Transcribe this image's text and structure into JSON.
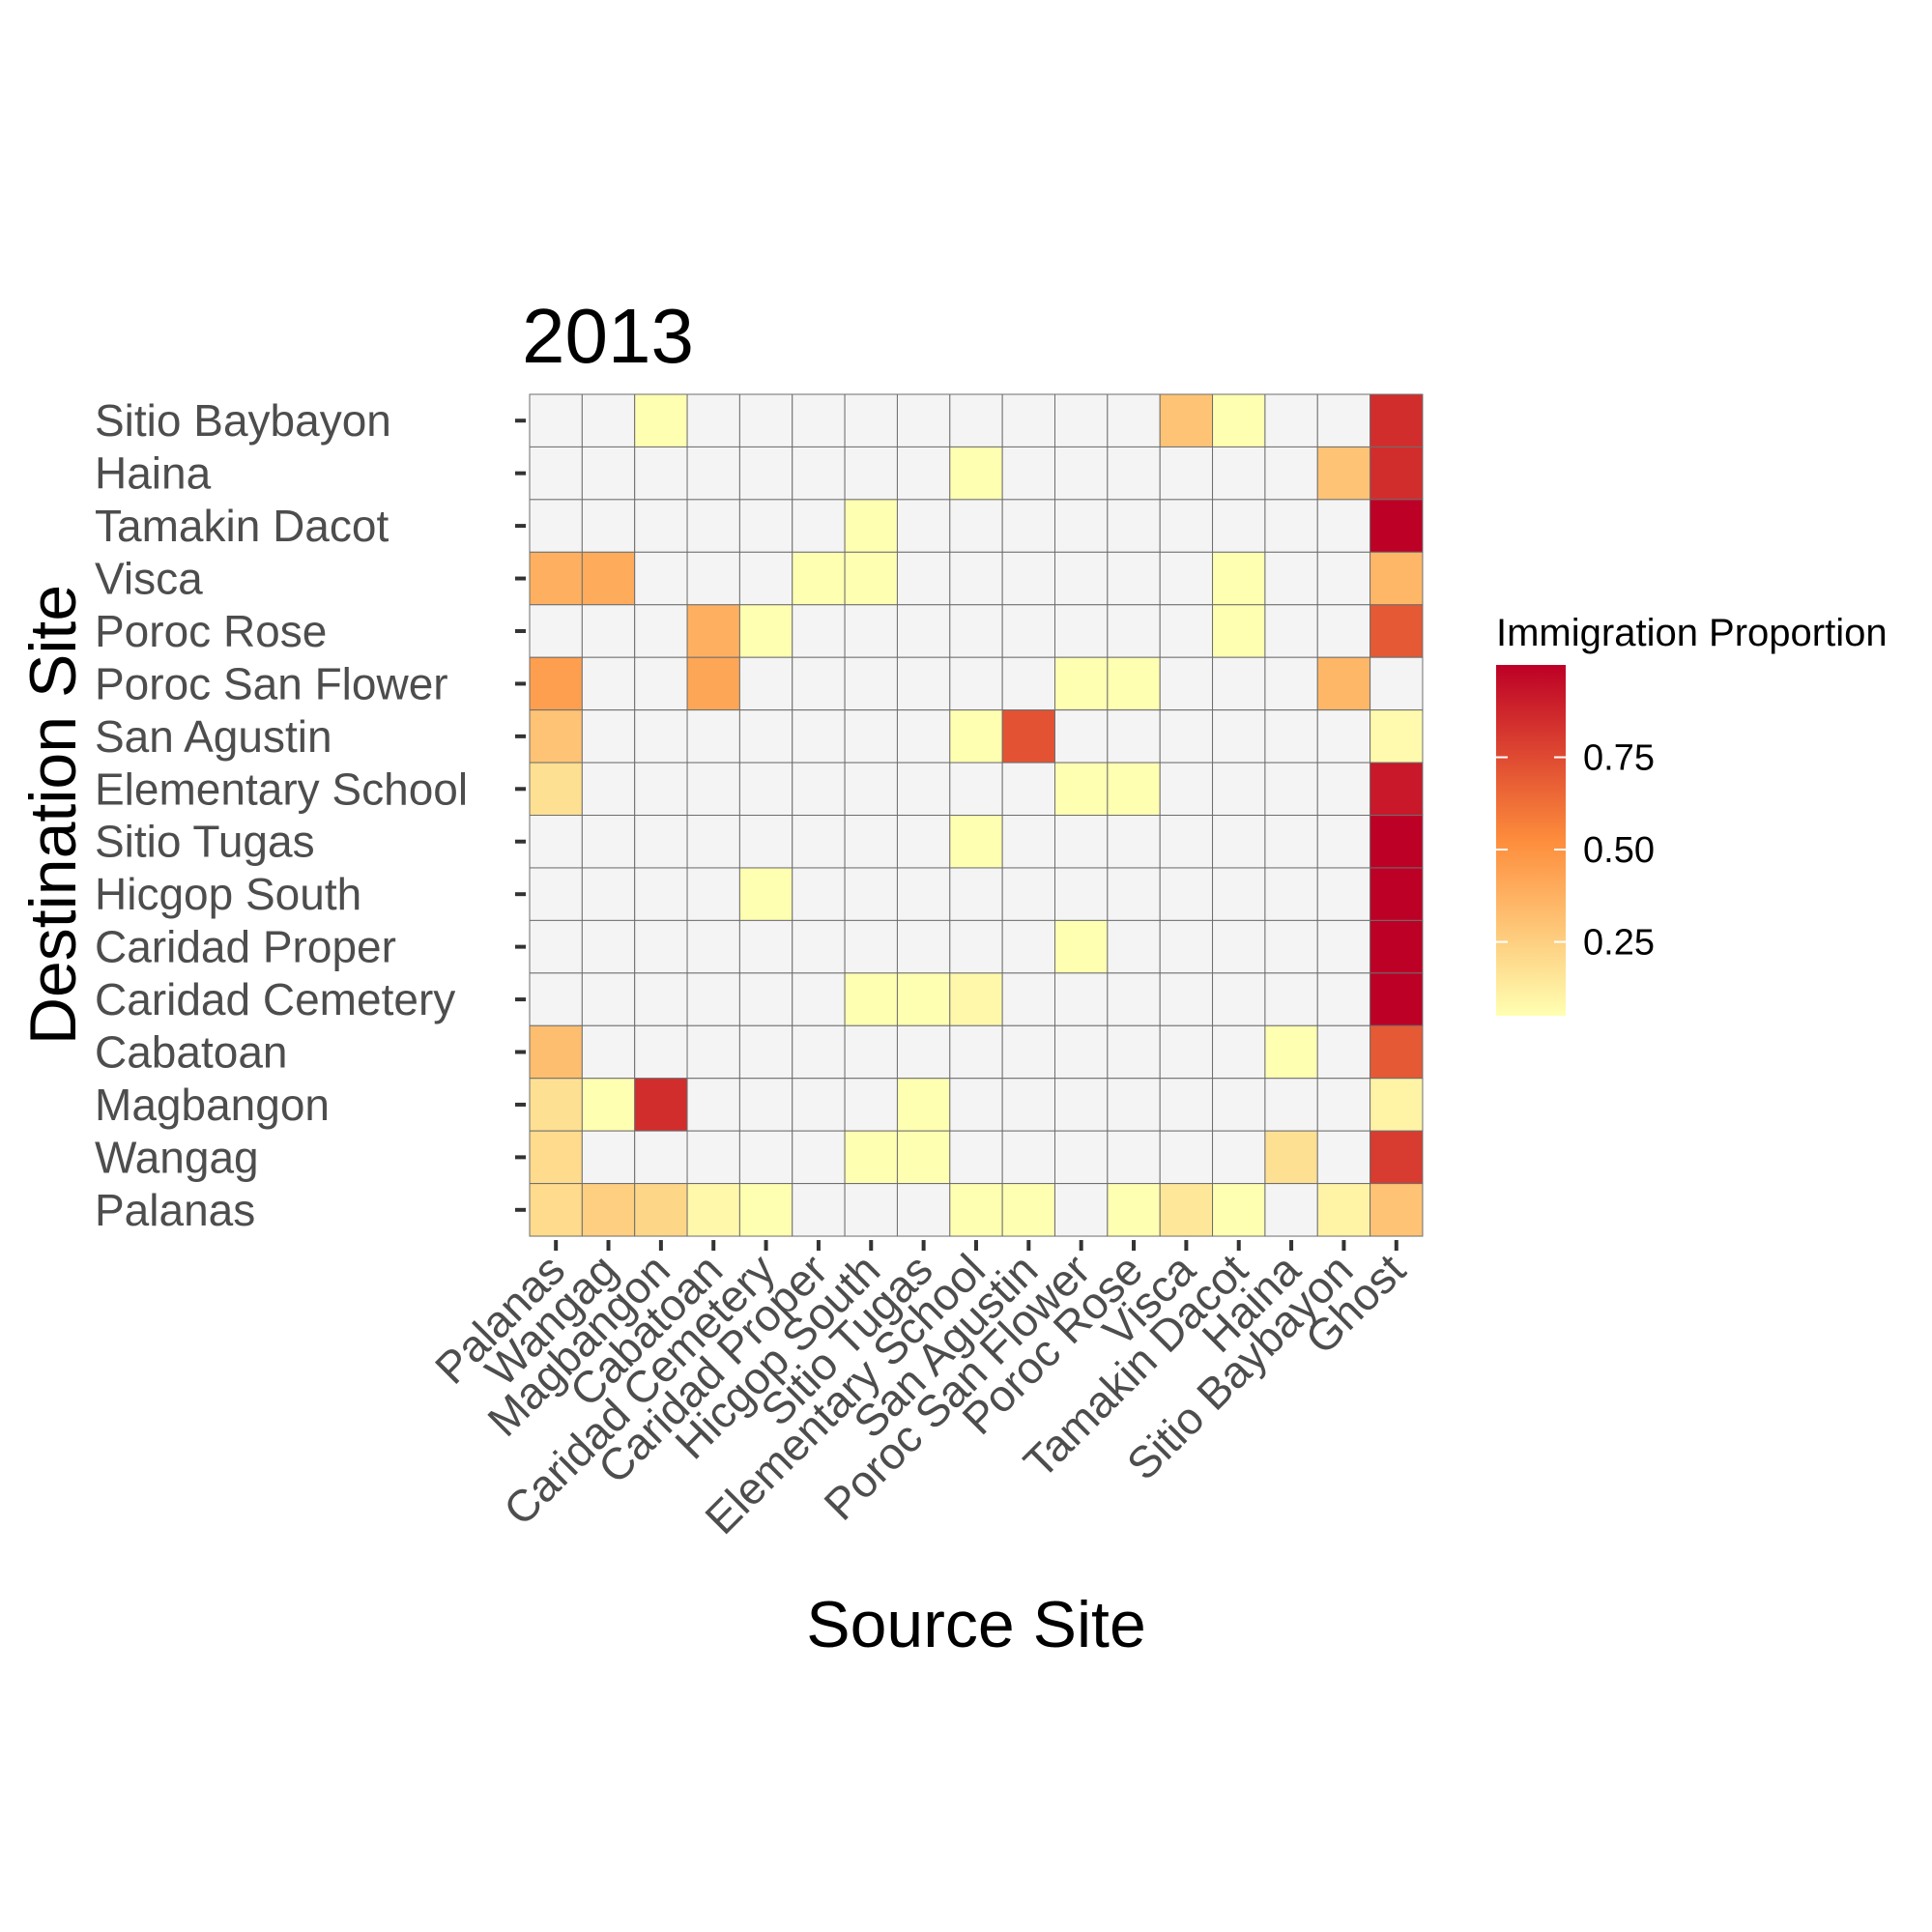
{
  "chart_data": {
    "type": "heatmap",
    "title": "2013",
    "xlabel": "Source Site",
    "ylabel": "Destination Site",
    "x_categories": [
      "Palanas",
      "Wangag",
      "Magbangon",
      "Cabatoan",
      "Caridad Cemetery",
      "Caridad Proper",
      "Hicgop South",
      "Sitio Tugas",
      "Elementary School",
      "San Agustin",
      "Poroc San Flower",
      "Poroc Rose",
      "Visca",
      "Tamakin Dacot",
      "Haina",
      "Sitio Baybayon",
      "Ghost"
    ],
    "y_categories": [
      "Sitio Baybayon",
      "Haina",
      "Tamakin Dacot",
      "Visca",
      "Poroc Rose",
      "Poroc San Flower",
      "San Agustin",
      "Elementary School",
      "Sitio Tugas",
      "Hicgop South",
      "Caridad Proper",
      "Caridad Cemetery",
      "Cabatoan",
      "Magbangon",
      "Wangag",
      "Palanas"
    ],
    "values": [
      [
        null,
        null,
        0.05,
        null,
        null,
        null,
        null,
        null,
        null,
        null,
        null,
        null,
        0.3,
        0.05,
        null,
        null,
        0.85
      ],
      [
        null,
        null,
        null,
        null,
        null,
        null,
        null,
        null,
        0.05,
        null,
        null,
        null,
        null,
        null,
        null,
        0.3,
        0.85
      ],
      [
        null,
        null,
        null,
        null,
        null,
        null,
        0.05,
        null,
        null,
        null,
        null,
        null,
        null,
        null,
        null,
        null,
        1.0
      ],
      [
        0.38,
        0.4,
        null,
        null,
        null,
        0.05,
        0.05,
        null,
        null,
        null,
        null,
        null,
        null,
        0.05,
        null,
        null,
        0.35
      ],
      [
        null,
        null,
        null,
        0.38,
        0.05,
        null,
        null,
        null,
        null,
        null,
        null,
        null,
        null,
        0.05,
        null,
        null,
        0.7
      ],
      [
        0.45,
        null,
        null,
        0.42,
        null,
        null,
        null,
        null,
        null,
        null,
        0.05,
        0.05,
        null,
        null,
        null,
        0.35,
        null
      ],
      [
        0.3,
        null,
        null,
        null,
        null,
        null,
        null,
        null,
        0.05,
        0.72,
        null,
        null,
        null,
        null,
        null,
        null,
        0.07
      ],
      [
        0.18,
        null,
        null,
        null,
        null,
        null,
        null,
        null,
        null,
        null,
        0.05,
        0.05,
        null,
        null,
        null,
        null,
        0.92
      ],
      [
        null,
        null,
        null,
        null,
        null,
        null,
        null,
        null,
        0.05,
        null,
        null,
        null,
        null,
        null,
        null,
        null,
        1.0
      ],
      [
        null,
        null,
        null,
        null,
        0.05,
        null,
        null,
        null,
        null,
        null,
        null,
        null,
        null,
        null,
        null,
        null,
        1.0
      ],
      [
        null,
        null,
        null,
        null,
        null,
        null,
        null,
        null,
        null,
        null,
        0.05,
        null,
        null,
        null,
        null,
        null,
        1.0
      ],
      [
        null,
        null,
        null,
        null,
        null,
        null,
        0.05,
        0.05,
        0.08,
        null,
        null,
        null,
        null,
        null,
        null,
        null,
        1.0
      ],
      [
        0.32,
        null,
        null,
        null,
        null,
        null,
        null,
        null,
        null,
        null,
        null,
        null,
        null,
        null,
        0.05,
        null,
        0.7
      ],
      [
        0.18,
        0.05,
        0.85,
        null,
        null,
        null,
        null,
        0.05,
        null,
        null,
        null,
        null,
        null,
        null,
        null,
        null,
        0.1
      ],
      [
        0.2,
        null,
        null,
        null,
        null,
        null,
        0.05,
        0.05,
        null,
        null,
        null,
        null,
        null,
        null,
        0.18,
        null,
        0.8
      ],
      [
        0.2,
        0.25,
        0.22,
        0.08,
        0.05,
        null,
        null,
        null,
        0.05,
        0.05,
        null,
        0.05,
        0.15,
        0.05,
        null,
        0.1,
        0.3
      ]
    ],
    "legend": {
      "title": "Immigration Proportion",
      "ticks": [
        0.25,
        0.5,
        0.75
      ],
      "tick_labels": [
        "0.25",
        "0.50",
        "0.75"
      ],
      "range": [
        0.05,
        1.0
      ],
      "position": "right",
      "low_color": "#ffffb2",
      "mid_color": "#fd8d3c",
      "high_color": "#bd0026"
    },
    "missing_color": "#f4f4f4",
    "grid": true
  }
}
